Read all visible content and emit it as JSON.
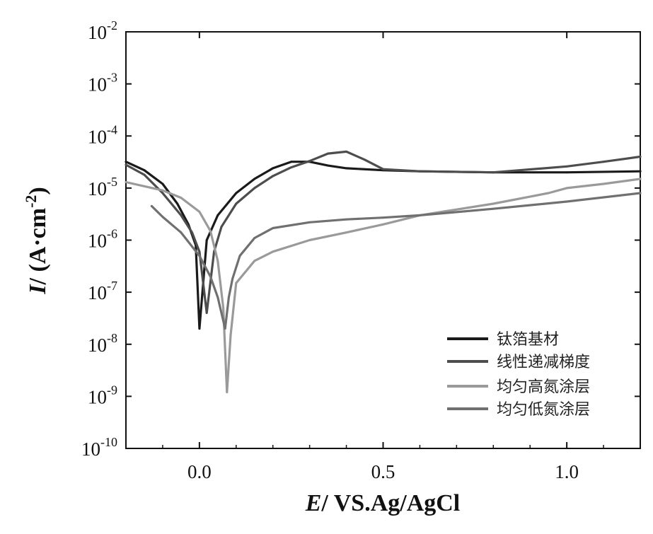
{
  "chart_data": {
    "type": "line",
    "xlabel_var": "E",
    "xlabel_rest": "/ VS.Ag/AgCl",
    "ylabel_var": "I",
    "ylabel_rest": "/ (A·cm",
    "ylabel_exp": "-2",
    "ylabel_close": ")",
    "xlim": [
      -0.2,
      1.2
    ],
    "ylim": [
      1e-10,
      0.01
    ],
    "yscale": "log",
    "x_ticks": [
      {
        "value": 0.0,
        "label": "0.0"
      },
      {
        "value": 0.5,
        "label": "0.5"
      },
      {
        "value": 1.0,
        "label": "1.0"
      }
    ],
    "y_ticks": [
      {
        "value": -10,
        "label": "10",
        "exp": "-10"
      },
      {
        "value": -9,
        "label": "10",
        "exp": "-9"
      },
      {
        "value": -8,
        "label": "10",
        "exp": "-8"
      },
      {
        "value": -7,
        "label": "10",
        "exp": "-7"
      },
      {
        "value": -6,
        "label": "10",
        "exp": "-6"
      },
      {
        "value": -5,
        "label": "10",
        "exp": "-5"
      },
      {
        "value": -4,
        "label": "10",
        "exp": "-4"
      },
      {
        "value": -3,
        "label": "10",
        "exp": "-3"
      },
      {
        "value": -2,
        "label": "10",
        "exp": "-2"
      }
    ],
    "grid": false,
    "legend_position": "bottom-right",
    "series": [
      {
        "name": "钛箔基材",
        "color": "#1a1a1a",
        "x": [
          -0.2,
          -0.15,
          -0.1,
          -0.06,
          -0.03,
          -0.01,
          0.0,
          0.02,
          0.05,
          0.1,
          0.15,
          0.2,
          0.25,
          0.3,
          0.35,
          0.4,
          0.5,
          0.6,
          0.8,
          1.0,
          1.2
        ],
        "y": [
          3.2e-05,
          2.2e-05,
          1.2e-05,
          5e-06,
          2e-06,
          8e-07,
          2e-08,
          1e-06,
          3e-06,
          8e-06,
          1.5e-05,
          2.4e-05,
          3.2e-05,
          3.2e-05,
          2.7e-05,
          2.4e-05,
          2.2e-05,
          2.1e-05,
          2e-05,
          2e-05,
          2.1e-05
        ]
      },
      {
        "name": "线性递减梯度",
        "color": "#4d4d4d",
        "x": [
          -0.2,
          -0.15,
          -0.1,
          -0.05,
          -0.02,
          0.0,
          0.02,
          0.04,
          0.06,
          0.1,
          0.15,
          0.2,
          0.25,
          0.3,
          0.35,
          0.4,
          0.45,
          0.5,
          0.6,
          0.8,
          1.0,
          1.1,
          1.2
        ],
        "y": [
          2.8e-05,
          1.8e-05,
          8e-06,
          3e-06,
          1.4e-06,
          6e-07,
          4e-08,
          6e-07,
          1.8e-06,
          5e-06,
          1e-05,
          1.7e-05,
          2.5e-05,
          3.3e-05,
          4.6e-05,
          5e-05,
          3.5e-05,
          2.3e-05,
          2.1e-05,
          2e-05,
          2.6e-05,
          3.2e-05,
          4e-05
        ]
      },
      {
        "name": "均匀高氮涂层",
        "color": "#9a9a9a",
        "x": [
          -0.2,
          -0.1,
          -0.05,
          0.0,
          0.03,
          0.05,
          0.065,
          0.075,
          0.085,
          0.1,
          0.15,
          0.2,
          0.3,
          0.4,
          0.5,
          0.6,
          0.8,
          0.95,
          1.0,
          1.1,
          1.2
        ],
        "y": [
          1.3e-05,
          9e-06,
          6.5e-06,
          3.5e-06,
          1.5e-06,
          4e-07,
          5e-08,
          1.2e-09,
          1.5e-08,
          1.5e-07,
          4e-07,
          6e-07,
          1e-06,
          1.4e-06,
          2e-06,
          3e-06,
          5e-06,
          8e-06,
          1e-05,
          1.2e-05,
          1.5e-05
        ]
      },
      {
        "name": "均匀低氮涂层",
        "color": "#707070",
        "x": [
          -0.13,
          -0.1,
          -0.05,
          0.0,
          0.03,
          0.05,
          0.07,
          0.08,
          0.09,
          0.11,
          0.15,
          0.2,
          0.3,
          0.4,
          0.5,
          0.6,
          0.8,
          1.0,
          1.2
        ],
        "y": [
          4.5e-06,
          2.8e-06,
          1.4e-06,
          5e-07,
          2e-07,
          8e-08,
          2e-08,
          8e-08,
          1.8e-07,
          5e-07,
          1.1e-06,
          1.7e-06,
          2.2e-06,
          2.5e-06,
          2.7e-06,
          3e-06,
          4e-06,
          5.5e-06,
          8e-06
        ]
      }
    ]
  }
}
